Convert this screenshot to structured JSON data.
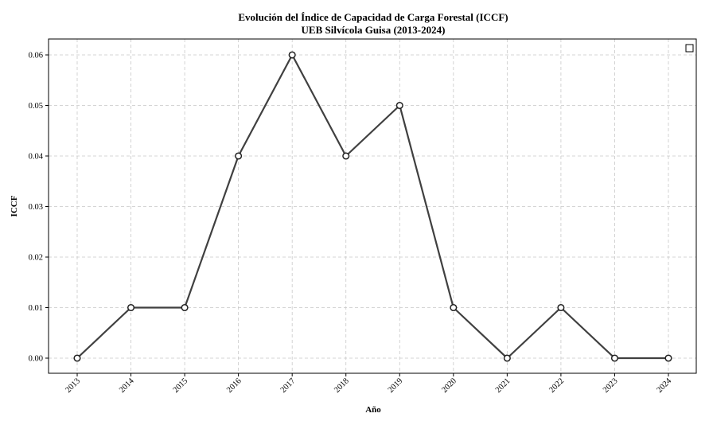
{
  "chart_data": {
    "type": "line",
    "title": "Evolución del Índice de Capacidad de Carga Forestal (ICCF)",
    "subtitle": "UEB Silvícola Guisa (2013-2024)",
    "xlabel": "Año",
    "ylabel": "ICCF",
    "x": [
      "2013",
      "2014",
      "2015",
      "2016",
      "2017",
      "2018",
      "2019",
      "2020",
      "2021",
      "2022",
      "2023",
      "2024"
    ],
    "series": [
      {
        "values": [
          0.0,
          0.01,
          0.01,
          0.04,
          0.06,
          0.04,
          0.05,
          0.01,
          0.0,
          0.01,
          0.0,
          0.0
        ],
        "color": "#404040",
        "marker": "circle-open"
      }
    ],
    "yticks": [
      "0.00",
      "0.01",
      "0.02",
      "0.03",
      "0.04",
      "0.05",
      "0.06"
    ],
    "ylim": [
      -0.0003,
      0.063
    ],
    "grid": true,
    "legend": "top-right",
    "legend_entries": [
      ""
    ]
  }
}
